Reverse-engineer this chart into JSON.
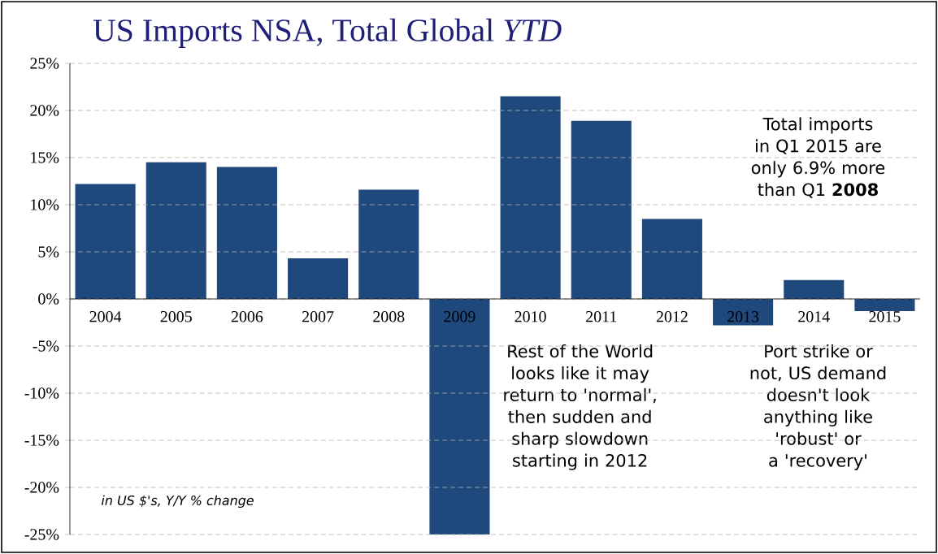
{
  "chart_data": {
    "type": "bar",
    "title": "US Imports NSA, Total Global *YTD*",
    "categories": [
      "2004",
      "2005",
      "2006",
      "2007",
      "2008",
      "2009",
      "2010",
      "2011",
      "2012",
      "2013",
      "2014",
      "2015"
    ],
    "values": [
      12.2,
      14.5,
      14.0,
      4.3,
      11.6,
      -25,
      21.5,
      18.9,
      8.5,
      -2.8,
      2.0,
      -1.3
    ],
    "color": "#1f497d",
    "ylim": [
      -25,
      25
    ],
    "yticks": [
      {
        "value": -25,
        "label": "-25%"
      },
      {
        "value": -20,
        "label": "-20%"
      },
      {
        "value": -15,
        "label": "-15%"
      },
      {
        "value": -10,
        "label": "-10%"
      },
      {
        "value": -5,
        "label": "-5%"
      },
      {
        "value": 0,
        "label": "0%"
      },
      {
        "value": 5,
        "label": "5%"
      },
      {
        "value": 10,
        "label": "10%"
      },
      {
        "value": 15,
        "label": "15%"
      },
      {
        "value": 20,
        "label": "20%"
      },
      {
        "value": 25,
        "label": "25%"
      }
    ],
    "grid": "y",
    "annotations": [
      "Total imports in Q1 2015 are only 6.9% more than Q1 **2008**",
      "Rest of the World looks like it may return to 'normal', then sudden and sharp slowdown starting in 2012",
      "Port strike or not, US demand doesn't look anything like 'robust' or a 'recovery'",
      "in US $'s, Y/Y % change"
    ]
  }
}
